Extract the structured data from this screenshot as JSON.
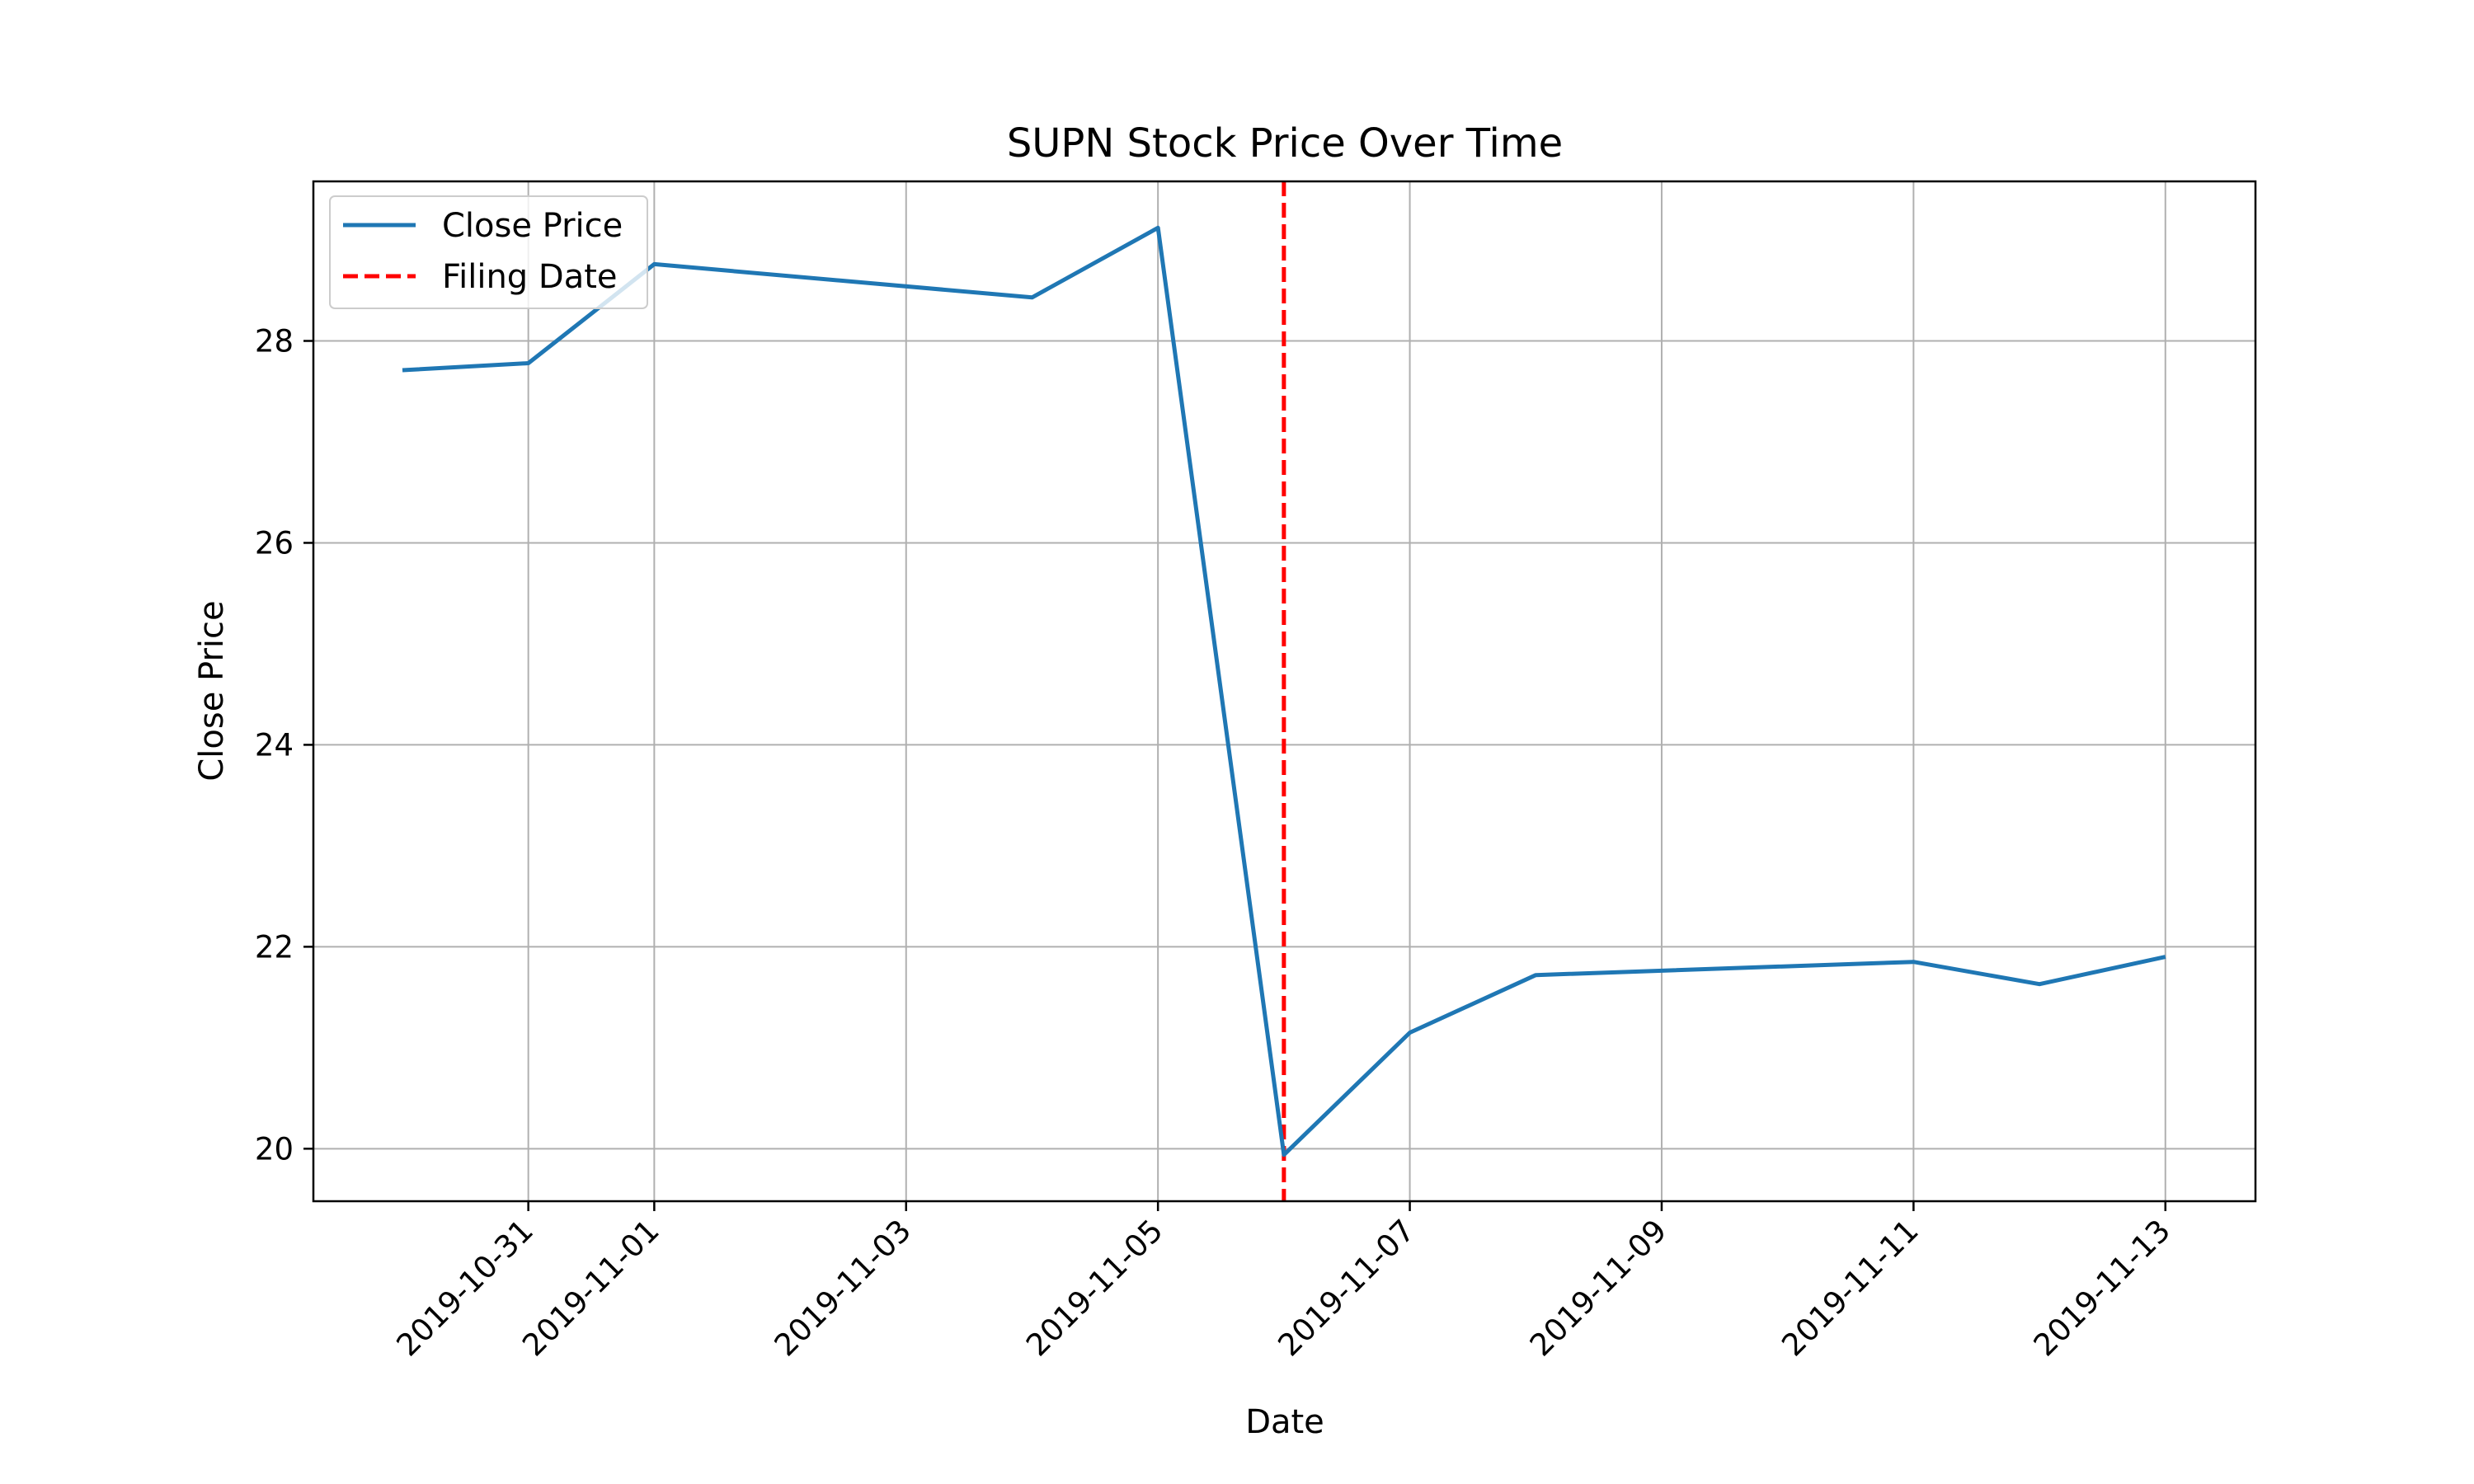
{
  "chart_data": {
    "type": "line",
    "title": "SUPN Stock Price Over Time",
    "xlabel": "Date",
    "ylabel": "Close Price",
    "x_range": [
      "2019-10-29T07:02:00",
      "2019-11-13T17:10:00"
    ],
    "ylim": [
      19.48,
      29.58
    ],
    "x_ticks": [
      "2019-10-31",
      "2019-11-01",
      "2019-11-03",
      "2019-11-05",
      "2019-11-07",
      "2019-11-09",
      "2019-11-11",
      "2019-11-13"
    ],
    "y_ticks": [
      20,
      22,
      24,
      26,
      28
    ],
    "grid": true,
    "legend_position": "top-left",
    "series": [
      {
        "name": "Close Price",
        "color": "#1f77b4",
        "style": "solid",
        "x": [
          "2019-10-30",
          "2019-10-31",
          "2019-11-01",
          "2019-11-04",
          "2019-11-05",
          "2019-11-06",
          "2019-11-07",
          "2019-11-08",
          "2019-11-11",
          "2019-11-12",
          "2019-11-13"
        ],
        "values": [
          27.71,
          27.78,
          28.76,
          28.43,
          29.12,
          19.94,
          21.15,
          21.72,
          21.85,
          21.63,
          21.9
        ]
      }
    ],
    "reference_lines": [
      {
        "name": "Filing Date",
        "x": "2019-11-06",
        "color": "#ff0000",
        "style": "dashed"
      }
    ]
  }
}
